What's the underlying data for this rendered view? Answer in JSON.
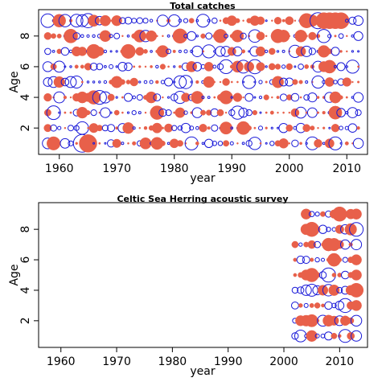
{
  "colors": {
    "positive": "#e8604a",
    "negative": "#1a1ad8",
    "frame": "#000000"
  },
  "chart_data": [
    {
      "type": "scatter",
      "variant": "bubble-residuals",
      "title": "Total catches",
      "xlabel": "year",
      "ylabel": "Age",
      "xticks": [
        1960,
        1970,
        1980,
        1990,
        2000,
        2010
      ],
      "yticks": [
        2,
        4,
        6,
        8
      ],
      "xlim": [
        1956.4,
        2013.6
      ],
      "ylim": [
        0.28,
        9.72
      ],
      "ages": [
        1,
        2,
        3,
        4,
        5,
        6,
        7,
        8,
        9
      ],
      "years": {
        "from": 1958,
        "to": 2012
      },
      "grid": false,
      "legend": "none"
    },
    {
      "type": "scatter",
      "variant": "bubble-residuals",
      "title": "Celtic Sea Herring acoustic survey",
      "xlabel": "year",
      "ylabel": "Age",
      "xticks": [
        1960,
        1970,
        1980,
        1990,
        2000,
        2010
      ],
      "yticks": [
        2,
        4,
        6,
        8
      ],
      "xlim": [
        1956,
        2015
      ],
      "ylim": [
        0.25,
        9.75
      ],
      "ages": [
        1,
        2,
        3,
        4,
        5,
        6,
        7,
        8,
        9
      ],
      "years": [
        2002,
        2003,
        2004,
        2005,
        2006,
        2007,
        2008,
        2009,
        2010,
        2011,
        2012,
        2013
      ],
      "grid": false,
      "legend": "none"
    }
  ]
}
